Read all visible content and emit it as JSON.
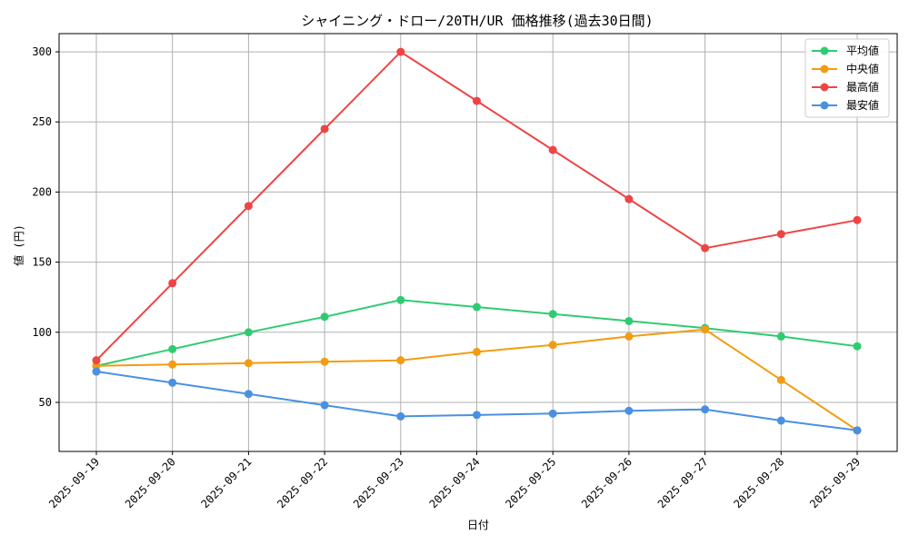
{
  "chart_data": {
    "type": "line",
    "title": "シャイニング・ドロー/20TH/UR 価格推移(過去30日間)",
    "xlabel": "日付",
    "ylabel": "値 (円)",
    "categories": [
      "2025-09-19",
      "2025-09-20",
      "2025-09-21",
      "2025-09-22",
      "2025-09-23",
      "2025-09-24",
      "2025-09-25",
      "2025-09-26",
      "2025-09-27",
      "2025-09-28",
      "2025-09-29"
    ],
    "ylim": [
      15,
      313
    ],
    "yticks": [
      50,
      100,
      150,
      200,
      250,
      300
    ],
    "grid": true,
    "legend_position": "top-right",
    "series": [
      {
        "name": "平均値",
        "color": "#2ecc71",
        "values": [
          76,
          88,
          100,
          111,
          123,
          118,
          113,
          108,
          103,
          97,
          90
        ]
      },
      {
        "name": "中央値",
        "color": "#f39c12",
        "values": [
          76,
          77,
          78,
          79,
          80,
          86,
          91,
          97,
          102,
          66,
          30
        ]
      },
      {
        "name": "最高値",
        "color": "#ef4444",
        "values": [
          80,
          135,
          190,
          245,
          300,
          265,
          230,
          195,
          160,
          170,
          180
        ]
      },
      {
        "name": "最安値",
        "color": "#4a90e2",
        "values": [
          72,
          64,
          56,
          48,
          40,
          41,
          42,
          44,
          45,
          37,
          30
        ]
      }
    ]
  }
}
